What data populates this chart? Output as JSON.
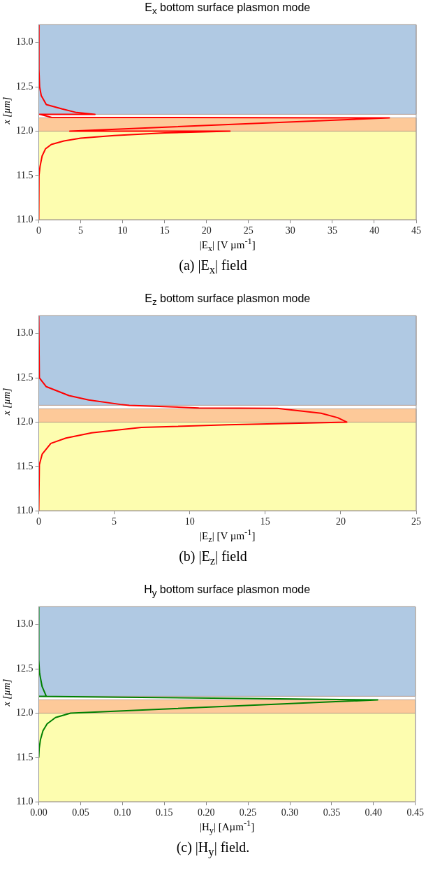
{
  "chart_data": [
    {
      "type": "line",
      "title": "E$_{x}$ bottom surface plasmon mode",
      "xlabel": "|E$_{x}$| [V µm$^{-1}$]",
      "ylabel": "x [µm]",
      "marker": "none",
      "xlim": [
        0,
        45
      ],
      "xticks": [
        0,
        5,
        10,
        15,
        20,
        25,
        30,
        35,
        40,
        45
      ],
      "ylim": [
        11,
        13.2
      ],
      "yticks": [
        {
          "value": 11,
          "label": "11.0"
        },
        {
          "value": 11.5,
          "label": "11.5"
        },
        {
          "value": 12,
          "label": "12.0"
        },
        {
          "value": 12.5,
          "label": "12.5"
        },
        {
          "value": 13,
          "label": "13.0"
        }
      ],
      "bands": [
        {
          "axis": "y",
          "from": 12.19,
          "to": 13.2,
          "color": "#b0c9e3"
        },
        {
          "axis": "y",
          "from": 12.0,
          "to": 12.15,
          "color": "#fdc999"
        },
        {
          "axis": "y",
          "from": 11.0,
          "to": 12.0,
          "color": "#fdfdaf"
        }
      ],
      "series": [
        {
          "color": "#ff0000",
          "x": [
            0,
            0.02,
            0.1,
            0.3,
            0.9,
            2.8,
            4.5,
            6.7,
            0.1,
            1.5,
            41.8,
            3.7,
            22.8,
            15,
            9,
            5,
            3,
            1.5,
            0.8,
            0.4,
            0.15,
            0.03,
            0
          ],
          "values": [
            13.2,
            12.7,
            12.5,
            12.4,
            12.3,
            12.25,
            12.21,
            12.19,
            12.19,
            12.155,
            12.15,
            12.0,
            12.0,
            11.98,
            11.95,
            11.92,
            11.89,
            11.85,
            11.8,
            11.72,
            11.6,
            11.5,
            11.0
          ]
        }
      ],
      "annotations": [
        "(a) |E$_{x}$| field"
      ]
    },
    {
      "type": "line",
      "title": "E$_{z}$ bottom surface plasmon mode",
      "xlabel": "|E$_{z}$| [V µm$^{-1}$]",
      "ylabel": "x [µm]",
      "marker": "none",
      "xlim": [
        0,
        25
      ],
      "xticks": [
        0,
        5,
        10,
        15,
        20,
        25
      ],
      "ylim": [
        11,
        13.2
      ],
      "yticks": [
        {
          "value": 11,
          "label": "11.0"
        },
        {
          "value": 11.5,
          "label": "11.5"
        },
        {
          "value": 12,
          "label": "12.0"
        },
        {
          "value": 12.5,
          "label": "12.5"
        },
        {
          "value": 13,
          "label": "13.0"
        }
      ],
      "bands": [
        {
          "axis": "y",
          "from": 12.19,
          "to": 13.2,
          "color": "#b0c9e3"
        },
        {
          "axis": "y",
          "from": 12.0,
          "to": 12.15,
          "color": "#fdc999"
        },
        {
          "axis": "y",
          "from": 11.0,
          "to": 12.0,
          "color": "#fdfdaf"
        }
      ],
      "series": [
        {
          "color": "#ff0000",
          "x": [
            0,
            0.04,
            0.5,
            2,
            3.3,
            5.4,
            6.0,
            10.6,
            15.8,
            18.7,
            19.8,
            20.4,
            12.5,
            6.8,
            3.5,
            1.8,
            0.8,
            0.23,
            0.04,
            0
          ],
          "values": [
            13.2,
            12.5,
            12.4,
            12.3,
            12.25,
            12.2,
            12.19,
            12.16,
            12.155,
            12.1,
            12.05,
            12.0,
            11.97,
            11.94,
            11.88,
            11.82,
            11.76,
            11.64,
            11.52,
            11.0
          ]
        }
      ],
      "annotations": [
        "(b) |E$_{z}$| field"
      ]
    },
    {
      "type": "line",
      "title": "H$_{y}$ bottom surface plasmon mode",
      "xlabel": "|H$_{y}$| [Aµm$^{-1}$]",
      "ylabel": "x [µm]",
      "marker": "none",
      "xlim": [
        0,
        0.45
      ],
      "xticks": [
        {
          "value": 0,
          "label": "0.00"
        },
        {
          "value": 0.05,
          "label": "0.05"
        },
        {
          "value": 0.1,
          "label": "0.10"
        },
        {
          "value": 0.15,
          "label": "0.15"
        },
        {
          "value": 0.2,
          "label": "0.20"
        },
        {
          "value": 0.25,
          "label": "0.25"
        },
        {
          "value": 0.3,
          "label": "0.30"
        },
        {
          "value": 0.35,
          "label": "0.35"
        },
        {
          "value": 0.4,
          "label": "0.40"
        },
        {
          "value": 0.45,
          "label": "0.45"
        }
      ],
      "ylim": [
        11,
        13.2
      ],
      "yticks": [
        {
          "value": 11,
          "label": "11.0"
        },
        {
          "value": 11.5,
          "label": "11.5"
        },
        {
          "value": 12,
          "label": "12.0"
        },
        {
          "value": 12.5,
          "label": "12.5"
        },
        {
          "value": 13,
          "label": "13.0"
        }
      ],
      "bands": [
        {
          "axis": "y",
          "from": 12.19,
          "to": 13.2,
          "color": "#b0c9e3"
        },
        {
          "axis": "y",
          "from": 12.0,
          "to": 12.15,
          "color": "#fdc999"
        },
        {
          "axis": "y",
          "from": 11.0,
          "to": 12.0,
          "color": "#fdfdaf"
        }
      ],
      "series": [
        {
          "color": "#008000",
          "x": [
            0,
            0,
            0.001,
            0.004,
            0.009,
            0,
            0.1,
            0.25,
            0.405,
            0.038,
            0.02,
            0.01,
            0.005,
            0.002,
            0.0005,
            0
          ],
          "values": [
            13.2,
            12.6,
            12.45,
            12.3,
            12.19,
            12.19,
            12.18,
            12.165,
            12.15,
            12.0,
            11.95,
            11.88,
            11.8,
            11.7,
            11.6,
            11.5
          ]
        }
      ],
      "annotations": [
        "(c) |H$_{y}$| field."
      ]
    }
  ]
}
